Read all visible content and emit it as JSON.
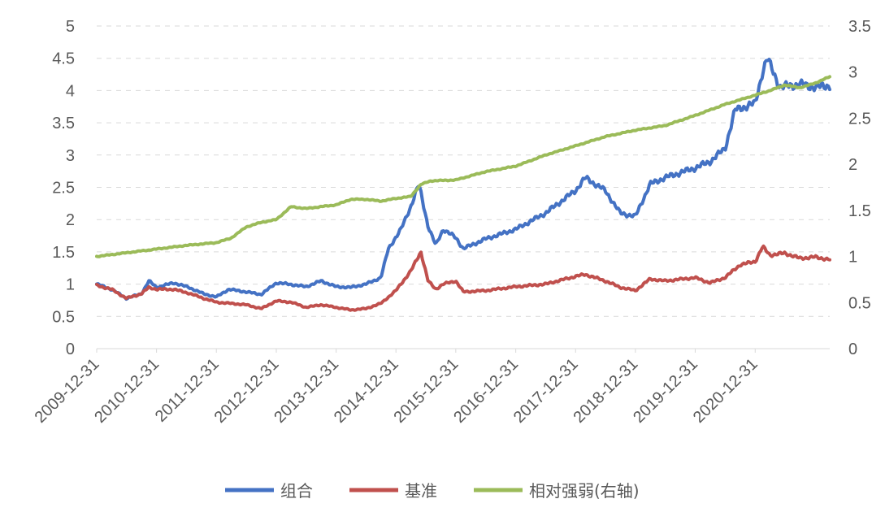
{
  "chart_data": {
    "type": "line",
    "title": "",
    "xlabel": "",
    "ylabel": "",
    "x_ticks": [
      "2009-12-31",
      "2010-12-31",
      "2011-12-31",
      "2012-12-31",
      "2013-12-31",
      "2014-12-31",
      "2015-12-31",
      "2016-12-31",
      "2017-12-31",
      "2018-12-31",
      "2019-12-31",
      "2020-12-31"
    ],
    "y_left": {
      "range": [
        0,
        5
      ],
      "ticks": [
        "0",
        "0.5",
        "1",
        "1.5",
        "2",
        "2.5",
        "3",
        "3.5",
        "4",
        "4.5",
        "5"
      ]
    },
    "y_right": {
      "range": [
        0,
        3.5
      ],
      "ticks": [
        "0",
        "0.5",
        "1",
        "1.5",
        "2",
        "2.5",
        "3",
        "3.5"
      ]
    },
    "grid": "horizontal-dashed",
    "legend_position": "bottom",
    "series": [
      {
        "name": "组合",
        "axis": "left",
        "color": "#4472C4",
        "points": [
          [
            "2009-12-31",
            1.0
          ],
          [
            "2010-03-31",
            0.92
          ],
          [
            "2010-06-30",
            0.78
          ],
          [
            "2010-09-30",
            0.85
          ],
          [
            "2010-11-15",
            1.05
          ],
          [
            "2010-12-31",
            0.95
          ],
          [
            "2011-04-15",
            1.02
          ],
          [
            "2011-07-15",
            0.95
          ],
          [
            "2011-10-15",
            0.85
          ],
          [
            "2011-12-31",
            0.8
          ],
          [
            "2012-03-15",
            0.92
          ],
          [
            "2012-06-30",
            0.88
          ],
          [
            "2012-09-30",
            0.84
          ],
          [
            "2012-12-31",
            1.02
          ],
          [
            "2013-03-15",
            1.0
          ],
          [
            "2013-06-30",
            0.96
          ],
          [
            "2013-09-30",
            1.05
          ],
          [
            "2013-12-31",
            0.96
          ],
          [
            "2014-03-31",
            0.95
          ],
          [
            "2014-06-30",
            1.0
          ],
          [
            "2014-09-30",
            1.1
          ],
          [
            "2014-11-15",
            1.55
          ],
          [
            "2015-01-31",
            1.85
          ],
          [
            "2015-03-31",
            2.2
          ],
          [
            "2015-05-20",
            2.55
          ],
          [
            "2015-07-15",
            1.9
          ],
          [
            "2015-08-31",
            1.6
          ],
          [
            "2015-10-15",
            1.85
          ],
          [
            "2015-12-31",
            1.72
          ],
          [
            "2016-02-15",
            1.55
          ],
          [
            "2016-06-30",
            1.7
          ],
          [
            "2016-12-31",
            1.85
          ],
          [
            "2017-06-30",
            2.1
          ],
          [
            "2017-12-31",
            2.45
          ],
          [
            "2018-02-28",
            2.65
          ],
          [
            "2018-06-30",
            2.45
          ],
          [
            "2018-09-30",
            2.1
          ],
          [
            "2018-12-31",
            2.05
          ],
          [
            "2019-03-31",
            2.55
          ],
          [
            "2019-06-30",
            2.65
          ],
          [
            "2019-12-31",
            2.8
          ],
          [
            "2020-03-31",
            2.9
          ],
          [
            "2020-06-30",
            3.1
          ],
          [
            "2020-08-31",
            3.7
          ],
          [
            "2020-12-31",
            3.8
          ],
          [
            "2021-02-15",
            4.3
          ],
          [
            "2021-03-15",
            4.5
          ],
          [
            "2021-05-31",
            4.05
          ],
          [
            "2021-09-30",
            4.1
          ],
          [
            "2021-12-31",
            4.05
          ],
          [
            "2022-03-31",
            4.08
          ]
        ]
      },
      {
        "name": "基准",
        "axis": "left",
        "color": "#C0504D",
        "points": [
          [
            "2009-12-31",
            0.98
          ],
          [
            "2010-03-31",
            0.92
          ],
          [
            "2010-06-30",
            0.78
          ],
          [
            "2010-09-30",
            0.85
          ],
          [
            "2010-11-15",
            0.95
          ],
          [
            "2010-12-31",
            0.92
          ],
          [
            "2011-04-15",
            0.92
          ],
          [
            "2011-07-15",
            0.86
          ],
          [
            "2011-10-15",
            0.78
          ],
          [
            "2011-12-31",
            0.72
          ],
          [
            "2012-03-31",
            0.7
          ],
          [
            "2012-06-30",
            0.68
          ],
          [
            "2012-09-30",
            0.62
          ],
          [
            "2012-12-31",
            0.74
          ],
          [
            "2013-03-31",
            0.72
          ],
          [
            "2013-06-30",
            0.64
          ],
          [
            "2013-09-30",
            0.68
          ],
          [
            "2013-12-31",
            0.64
          ],
          [
            "2014-03-31",
            0.6
          ],
          [
            "2014-06-30",
            0.62
          ],
          [
            "2014-09-30",
            0.7
          ],
          [
            "2014-12-31",
            0.9
          ],
          [
            "2015-03-31",
            1.2
          ],
          [
            "2015-06-01",
            1.5
          ],
          [
            "2015-07-15",
            1.05
          ],
          [
            "2015-08-31",
            0.92
          ],
          [
            "2015-10-15",
            1.0
          ],
          [
            "2015-12-31",
            1.05
          ],
          [
            "2016-02-15",
            0.88
          ],
          [
            "2016-06-30",
            0.9
          ],
          [
            "2016-12-31",
            0.96
          ],
          [
            "2017-06-30",
            1.0
          ],
          [
            "2017-12-31",
            1.12
          ],
          [
            "2018-02-28",
            1.15
          ],
          [
            "2018-06-30",
            1.05
          ],
          [
            "2018-09-30",
            0.95
          ],
          [
            "2018-12-31",
            0.9
          ],
          [
            "2019-03-31",
            1.08
          ],
          [
            "2019-06-30",
            1.05
          ],
          [
            "2019-12-31",
            1.1
          ],
          [
            "2020-03-31",
            1.02
          ],
          [
            "2020-06-30",
            1.1
          ],
          [
            "2020-09-30",
            1.3
          ],
          [
            "2020-12-31",
            1.35
          ],
          [
            "2021-02-15",
            1.58
          ],
          [
            "2021-03-31",
            1.45
          ],
          [
            "2021-06-30",
            1.48
          ],
          [
            "2021-09-30",
            1.4
          ],
          [
            "2021-12-31",
            1.42
          ],
          [
            "2022-03-31",
            1.38
          ]
        ]
      },
      {
        "name": "相对强弱(右轴)",
        "axis": "right",
        "color": "#9BBB59",
        "points": [
          [
            "2009-12-31",
            1.0
          ],
          [
            "2010-06-30",
            1.04
          ],
          [
            "2010-12-31",
            1.08
          ],
          [
            "2011-06-30",
            1.12
          ],
          [
            "2011-12-31",
            1.15
          ],
          [
            "2012-03-31",
            1.2
          ],
          [
            "2012-06-30",
            1.32
          ],
          [
            "2012-09-30",
            1.37
          ],
          [
            "2012-12-31",
            1.4
          ],
          [
            "2013-03-31",
            1.54
          ],
          [
            "2013-06-30",
            1.52
          ],
          [
            "2013-09-30",
            1.54
          ],
          [
            "2013-12-31",
            1.56
          ],
          [
            "2014-03-31",
            1.62
          ],
          [
            "2014-06-30",
            1.62
          ],
          [
            "2014-09-30",
            1.6
          ],
          [
            "2014-12-31",
            1.63
          ],
          [
            "2015-03-31",
            1.65
          ],
          [
            "2015-05-31",
            1.78
          ],
          [
            "2015-07-31",
            1.82
          ],
          [
            "2015-12-31",
            1.83
          ],
          [
            "2016-06-30",
            1.92
          ],
          [
            "2016-12-31",
            1.98
          ],
          [
            "2017-06-30",
            2.1
          ],
          [
            "2017-12-31",
            2.2
          ],
          [
            "2018-06-30",
            2.3
          ],
          [
            "2018-12-31",
            2.37
          ],
          [
            "2019-06-30",
            2.42
          ],
          [
            "2019-12-31",
            2.53
          ],
          [
            "2020-06-30",
            2.65
          ],
          [
            "2020-12-31",
            2.75
          ],
          [
            "2021-03-31",
            2.8
          ],
          [
            "2021-06-30",
            2.86
          ],
          [
            "2021-09-30",
            2.83
          ],
          [
            "2021-12-31",
            2.88
          ],
          [
            "2022-03-31",
            2.95
          ]
        ]
      }
    ]
  }
}
